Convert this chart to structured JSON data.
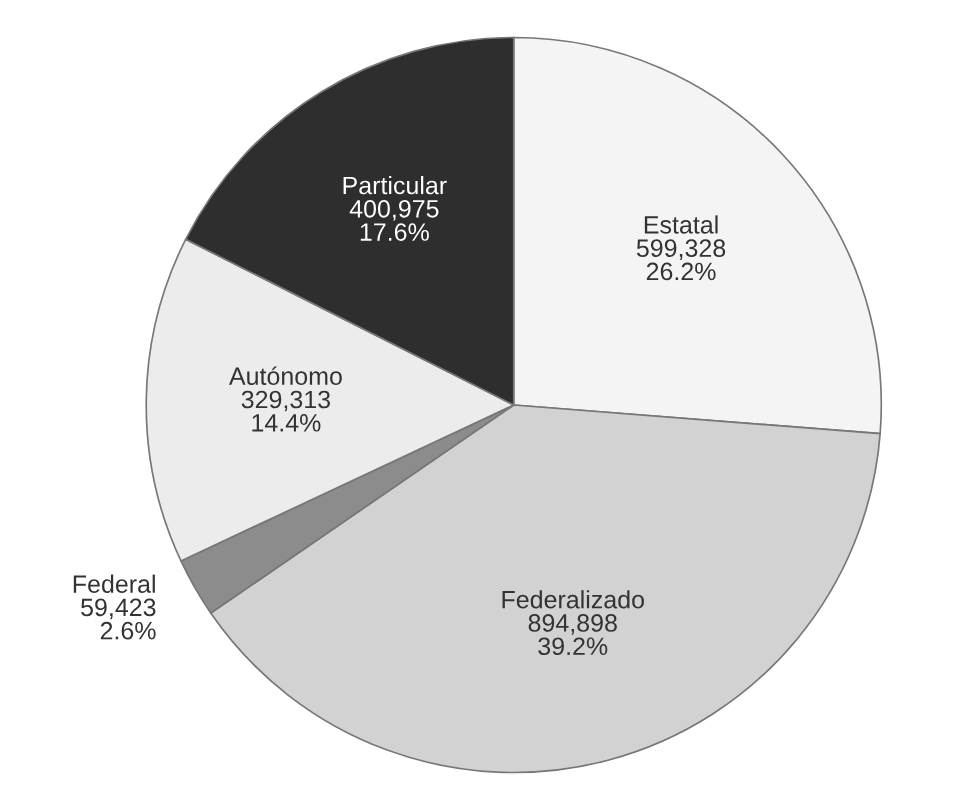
{
  "chart_data": {
    "type": "pie",
    "categories": [
      "Estatal",
      "Federalizado",
      "Federal",
      "Autónomo",
      "Particular"
    ],
    "values": [
      599328,
      894898,
      59423,
      329313,
      400975
    ],
    "value_labels": [
      "599,328\n26.2%",
      "894,898\n39.2%",
      "59,423\n2.6%",
      "329,313\n14.4%",
      "400,975\n17.6%"
    ],
    "colors": [
      "#f4f4f4",
      "#d2d2d2",
      "#8c8c8c",
      "#ececec",
      "#2e2e2e"
    ]
  }
}
